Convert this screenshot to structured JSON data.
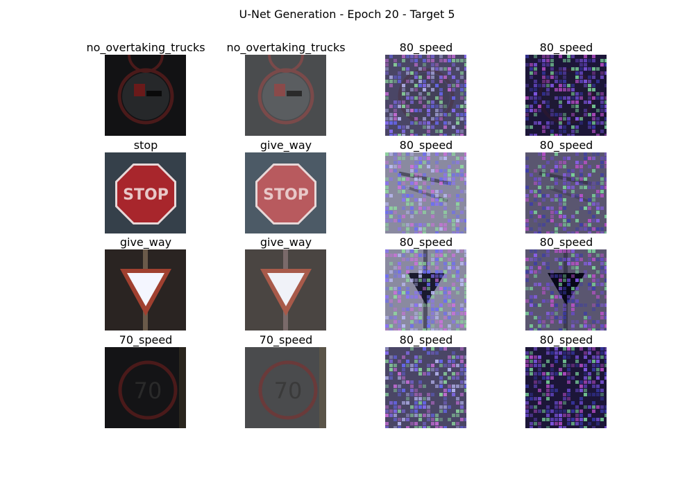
{
  "figure": {
    "title": "U-Net Generation - Epoch 20 - Target 5"
  },
  "rows": [
    {
      "labels": [
        "no_overtaking_trucks",
        "no_overtaking_trucks",
        "80_speed",
        "80_speed"
      ],
      "sign": "no-overtaking-trucks-sign"
    },
    {
      "labels": [
        "stop",
        "give_way",
        "80_speed",
        "80_speed"
      ],
      "sign": "stop-sign"
    },
    {
      "labels": [
        "give_way",
        "give_way",
        "80_speed",
        "80_speed"
      ],
      "sign": "give-way-sign"
    },
    {
      "labels": [
        "70_speed",
        "70_speed",
        "80_speed",
        "80_speed"
      ],
      "sign": "speed-limit-70-sign",
      "sign_text": "70"
    }
  ]
}
